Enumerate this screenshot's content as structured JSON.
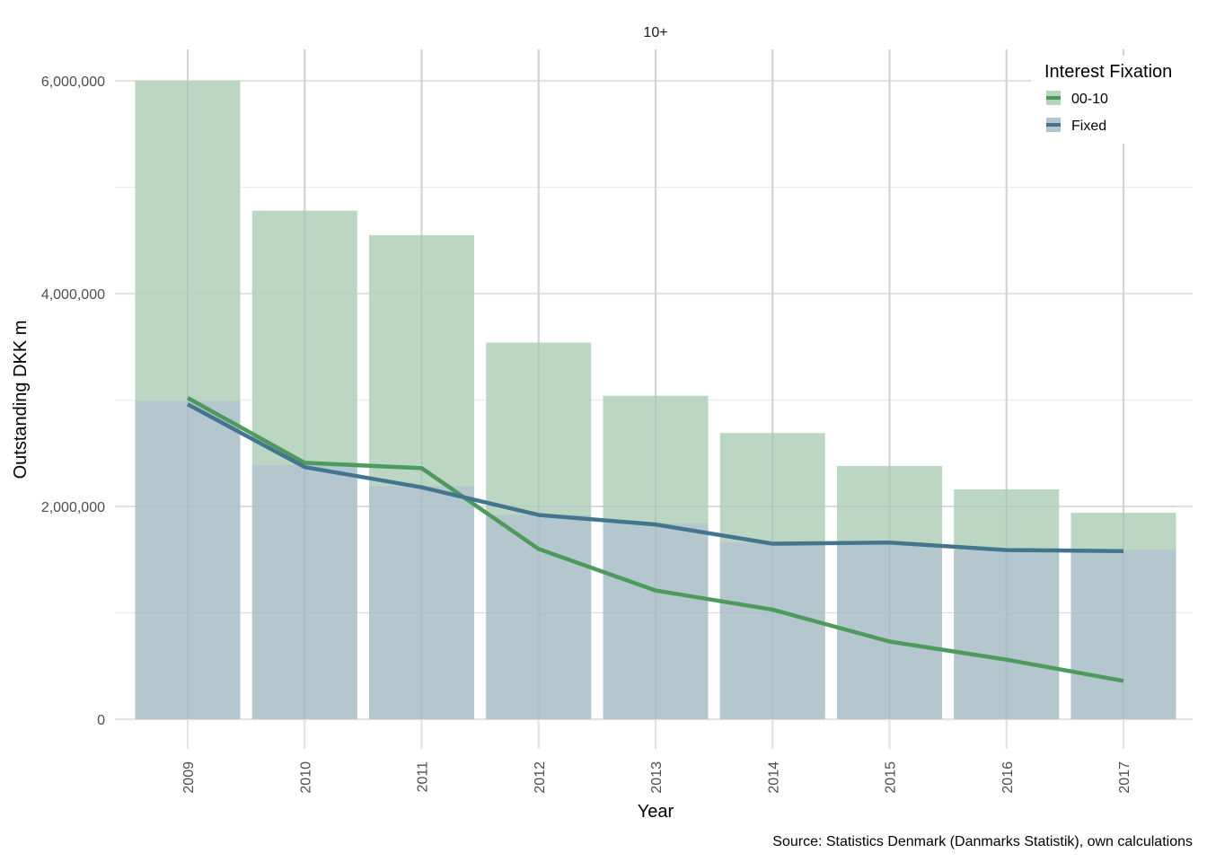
{
  "chart_data": {
    "type": "bar",
    "facet_label": "10+",
    "xlabel": "Year",
    "ylabel": "Outstanding DKK m",
    "caption": "Source: Statistics Denmark (Danmarks Statistik), own calculations",
    "categories": [
      "2009",
      "2010",
      "2011",
      "2012",
      "2013",
      "2014",
      "2015",
      "2016",
      "2017"
    ],
    "ylim": [
      0,
      6000000
    ],
    "y_ticks": [
      0,
      2000000,
      4000000,
      6000000
    ],
    "y_tick_labels": [
      "0",
      "2,000,000",
      "4,000,000",
      "6,000,000"
    ],
    "legend": {
      "title": "Interest Fixation",
      "position": "top-right",
      "entries": [
        {
          "name": "00-10",
          "color": "#4c9a5c",
          "fill": "#b7d4bf"
        },
        {
          "name": "Fixed",
          "color": "#44758f",
          "fill": "#b3c6d0"
        }
      ]
    },
    "series": [
      {
        "name": "00-10",
        "color": "#4c9a5c",
        "fill": "#b7d4bf",
        "bar_top": [
          6000000,
          4780000,
          4550000,
          3540000,
          3040000,
          2690000,
          2380000,
          2160000,
          1940000
        ],
        "line_values": [
          3020000,
          2410000,
          2360000,
          1600000,
          1210000,
          1030000,
          730000,
          560000,
          360000
        ]
      },
      {
        "name": "Fixed",
        "color": "#44758f",
        "fill": "#b3c6d0",
        "bar_top": [
          2990000,
          2390000,
          2190000,
          1920000,
          1840000,
          1660000,
          1650000,
          1590000,
          1590000
        ],
        "line_values": [
          2960000,
          2370000,
          2180000,
          1920000,
          1830000,
          1650000,
          1660000,
          1590000,
          1580000
        ]
      }
    ]
  }
}
